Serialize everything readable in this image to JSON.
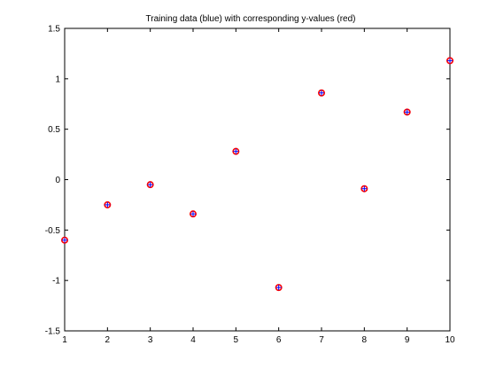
{
  "chart_data": {
    "type": "scatter",
    "title": "Training data (blue) with corresponding y-values (red)",
    "xlabel": "",
    "ylabel": "",
    "xlim": [
      1,
      10
    ],
    "ylim": [
      -1.5,
      1.5
    ],
    "x_ticks": [
      1,
      2,
      3,
      4,
      5,
      6,
      7,
      8,
      9,
      10
    ],
    "y_ticks": [
      -1.5,
      -1,
      -0.5,
      0,
      0.5,
      1,
      1.5
    ],
    "grid": false,
    "legend": "none",
    "series": [
      {
        "color": "#0000ff",
        "marker": "plus",
        "x": [
          1,
          2,
          3,
          4,
          5,
          6,
          7,
          8,
          9,
          10
        ],
        "y": [
          -0.6,
          -0.25,
          -0.05,
          -0.34,
          0.28,
          -1.07,
          0.86,
          -0.09,
          0.67,
          1.18
        ]
      },
      {
        "color": "#ff0000",
        "marker": "circle",
        "x": [
          1,
          2,
          3,
          4,
          5,
          6,
          7,
          8,
          9,
          10
        ],
        "y": [
          -0.6,
          -0.25,
          -0.05,
          -0.34,
          0.28,
          -1.07,
          0.86,
          -0.09,
          0.67,
          1.18
        ]
      }
    ]
  }
}
